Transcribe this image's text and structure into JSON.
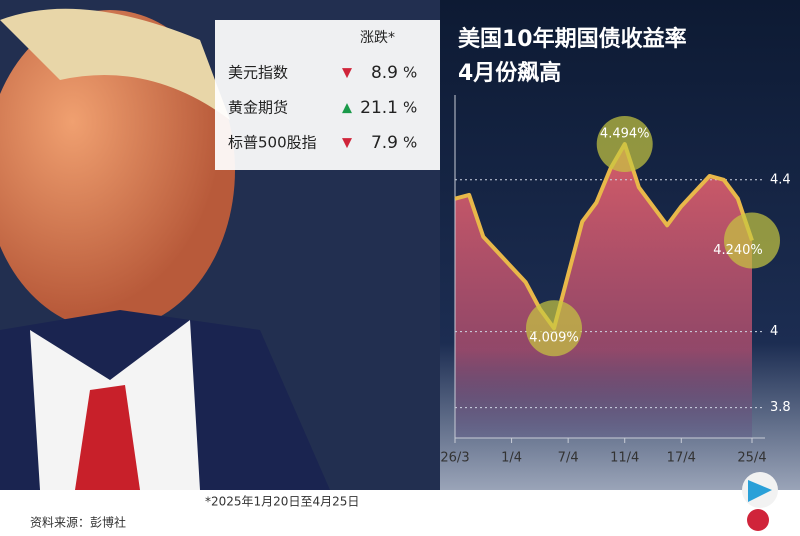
{
  "panel": {
    "header": "涨跌*",
    "rows": [
      {
        "name": "美元指数",
        "direction": "▼",
        "color": "#d0243a",
        "value": "8.9",
        "unit": "%"
      },
      {
        "name": "黄金期货",
        "direction": "▲",
        "color": "#1a9a4a",
        "value": "21.1",
        "unit": "%"
      },
      {
        "name": "标普500股指",
        "direction": "▼",
        "color": "#d0243a",
        "value": "7.9",
        "unit": "%"
      }
    ],
    "footnote": "*2025年1月20日至4月25日",
    "source": "资料来源：彭博社"
  },
  "chart_data": {
    "type": "line",
    "title": "美国10年期国债收益率",
    "subtitle": "4月份飙高",
    "categories": [
      "26/3",
      null,
      null,
      null,
      "1/4",
      null,
      null,
      null,
      "7/4",
      null,
      null,
      null,
      "11/4",
      null,
      null,
      null,
      "17/4",
      null,
      null,
      null,
      null,
      "25/4"
    ],
    "series": [
      {
        "name": "收益率",
        "color": "#e8b84a",
        "values": [
          4.35,
          4.36,
          4.25,
          4.21,
          4.17,
          4.13,
          4.06,
          4.009,
          4.15,
          4.29,
          4.34,
          4.43,
          4.494,
          4.38,
          4.33,
          4.28,
          4.33,
          4.37,
          4.41,
          4.4,
          4.35,
          4.24
        ],
        "value_labels": [
          null,
          null,
          null,
          null,
          null,
          null,
          null,
          "4.009%",
          null,
          null,
          null,
          null,
          "4.494%",
          null,
          null,
          null,
          null,
          null,
          null,
          null,
          null,
          "4.240%"
        ]
      }
    ],
    "ylim": [
      3.72,
      4.61
    ],
    "yticks": [
      3.8,
      4.0,
      4.4
    ],
    "grid": true
  }
}
